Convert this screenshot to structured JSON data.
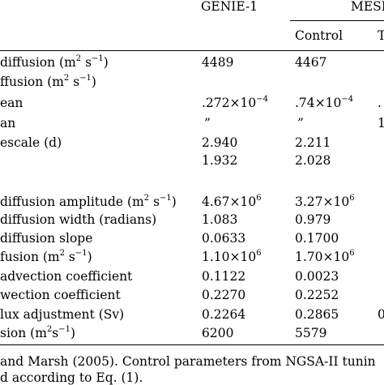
{
  "header": {
    "col_genie": "GENIE-1",
    "col_mesmo": "MESM",
    "sub_control": "Control",
    "sub_next": "T"
  },
  "rows": [
    {
      "label": "diffusion (m",
      "label_sup": "2",
      "label_tail": " s",
      "label_sup2": "−1",
      "label_end": ")",
      "genie": "4489",
      "control": "4467",
      "extra": ""
    },
    {
      "label": "ffusion (m",
      "label_sup": "2",
      "label_tail": " s",
      "label_sup2": "−1",
      "label_end": ")",
      "genie": "",
      "control": "",
      "extra": ""
    },
    {
      "label": "ean",
      "genie": ".272×10",
      "genie_sup": "−4",
      "control": ".74×10",
      "control_sup": "−4",
      "extra": "."
    },
    {
      "label": "an",
      "genie": "”",
      "control": "”",
      "extra": "1"
    },
    {
      "label": "escale (d)",
      "genie": "2.940",
      "control": "2.211",
      "extra": ""
    },
    {
      "label": "",
      "genie": "1.932",
      "control": "2.028",
      "extra": ""
    },
    {
      "label": " diffusion amplitude (m",
      "label_sup": "2",
      "label_tail": " s",
      "label_sup2": "−1",
      "label_end": ")",
      "genie": "4.67×10",
      "genie_sup": "6",
      "control": "3.27×10",
      "control_sup": "6",
      "extra": ""
    },
    {
      "label": " diffusion width (radians)",
      "genie": "1.083",
      "control": "0.979",
      "extra": ""
    },
    {
      "label": " diffusion slope",
      "genie": "0.0633",
      "control": "0.1700",
      "extra": ""
    },
    {
      "label": "fusion (m",
      "label_sup": "2",
      "label_tail": " s",
      "label_sup2": "−1",
      "label_end": ")",
      "genie": "1.10×10",
      "genie_sup": "6",
      "control": "1.70×10",
      "control_sup": "6",
      "extra": ""
    },
    {
      "label": " advection coefficient",
      "genie": "0.1122",
      "control": "0.0023",
      "extra": ""
    },
    {
      "label": "wection coefficient",
      "genie": "0.2270",
      "control": "0.2252",
      "extra": ""
    },
    {
      "label": "lux adjustment (Sv)",
      "genie": "0.2264",
      "control": "0.2865",
      "extra": "0"
    },
    {
      "label": "sion (m",
      "label_sup": "2",
      "label_tail": "s",
      "label_sup2": "−1",
      "label_end": ")",
      "genie": "6200",
      "control": "5579",
      "extra": ""
    }
  ],
  "footnote": {
    "line1": " and Marsh (2005).  Control parameters from NGSA-II tunin",
    "line2": "d according to Eq. (1)."
  }
}
